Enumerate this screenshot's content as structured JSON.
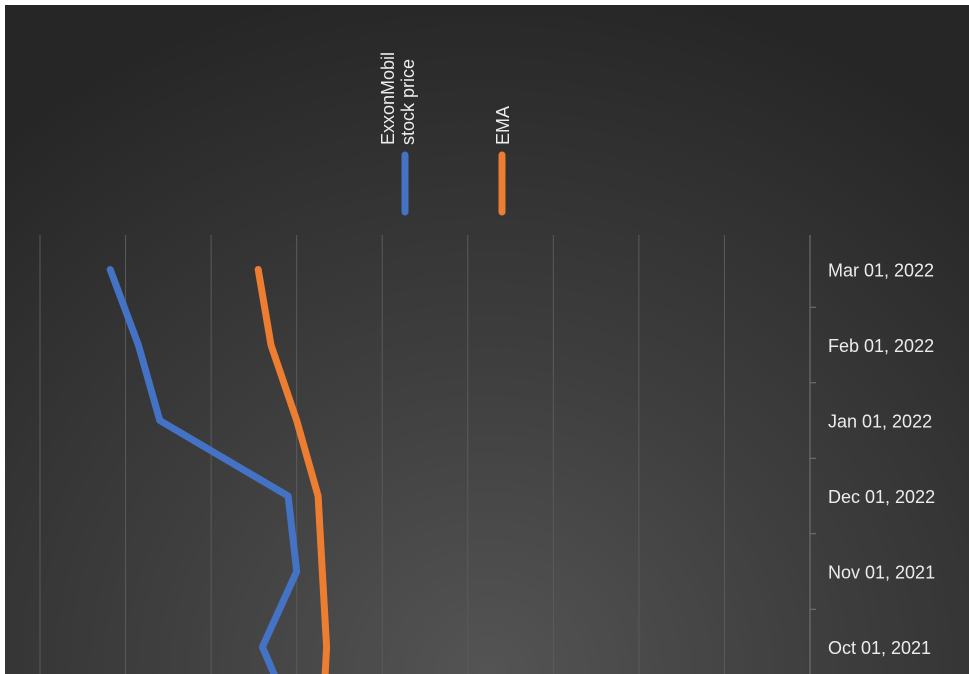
{
  "chart_data": {
    "type": "line",
    "orientation": "rotated",
    "categories": [
      "Oct 01, 2021",
      "Nov 01, 2021",
      "Dec 01, 2022",
      "Jan 01, 2022",
      "Feb 01, 2022",
      "Mar 01, 2022"
    ],
    "series": [
      {
        "name": "ExxonMobil stock price",
        "values": [
          2.6,
          3.0,
          2.9,
          1.4,
          1.15,
          0.82
        ],
        "color": "#4472c4"
      },
      {
        "name": "EMA",
        "values": [
          3.35,
          3.3,
          3.25,
          3.0,
          2.7,
          2.55
        ],
        "color": "#ed7d31"
      }
    ],
    "value_axis": {
      "range": [
        0,
        9
      ],
      "grid": true,
      "tick_labels": false
    },
    "legend": {
      "position": "top",
      "text_rotation": "vertical"
    },
    "colors": {
      "background_center": "#545454",
      "background_edge": "#262626",
      "gridline": "#5a5a5a",
      "text": "#ececec"
    }
  }
}
